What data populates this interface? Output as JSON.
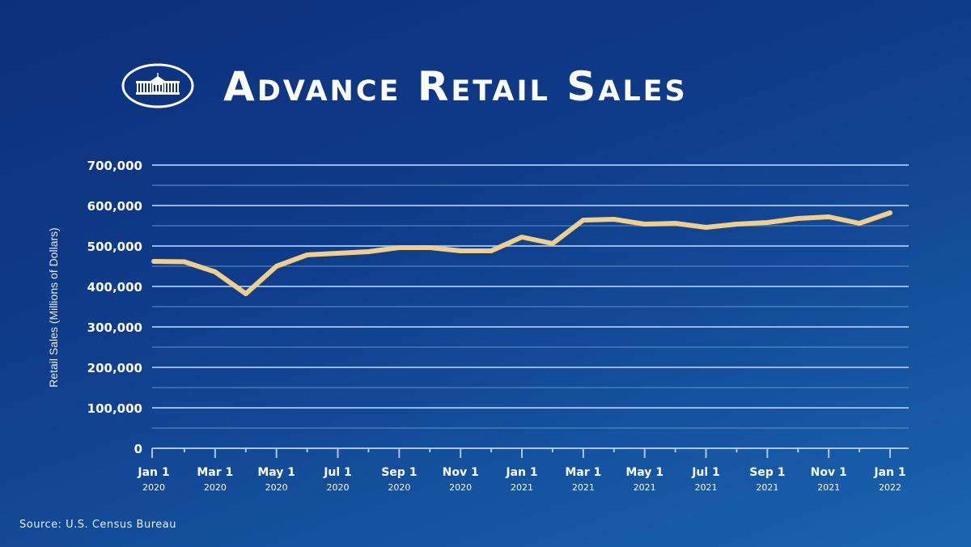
{
  "header": {
    "title": "Advance Retail Sales",
    "logo_icon": "white-house-logo-icon"
  },
  "footer": {
    "source": "Source: U.S. Census Bureau"
  },
  "colors": {
    "line": "#f1cf8a",
    "grid_major": "#9cc0ee",
    "grid_minor": "#5f8fcf",
    "axis": "#a9c8f0",
    "background_top": "#0c2f7a",
    "background_bottom": "#1a63b0"
  },
  "chart_data": {
    "type": "line",
    "title": "Advance Retail Sales",
    "xlabel": "",
    "ylabel": "Retail Sales (Millions of Dollars)",
    "ylim": [
      0,
      700000
    ],
    "yticks": [
      "0",
      "100,000",
      "200,000",
      "300,000",
      "400,000",
      "500,000",
      "600,000",
      "700,000"
    ],
    "ytick_values": [
      0,
      100000,
      200000,
      300000,
      400000,
      500000,
      600000,
      700000
    ],
    "grid": true,
    "minor_grid_step": 50000,
    "legend": "none",
    "xtick_labels": [
      {
        "month": "Jan 1",
        "year": "2020"
      },
      {
        "month": "Mar 1",
        "year": "2020"
      },
      {
        "month": "May 1",
        "year": "2020"
      },
      {
        "month": "Jul 1",
        "year": "2020"
      },
      {
        "month": "Sep 1",
        "year": "2020"
      },
      {
        "month": "Nov 1",
        "year": "2020"
      },
      {
        "month": "Jan 1",
        "year": "2021"
      },
      {
        "month": "Mar 1",
        "year": "2021"
      },
      {
        "month": "May 1",
        "year": "2021"
      },
      {
        "month": "Jul 1",
        "year": "2021"
      },
      {
        "month": "Sep 1",
        "year": "2021"
      },
      {
        "month": "Nov 1",
        "year": "2021"
      },
      {
        "month": "Jan 1",
        "year": "2022"
      }
    ],
    "x": [
      "2020-01",
      "2020-02",
      "2020-03",
      "2020-04",
      "2020-05",
      "2020-06",
      "2020-07",
      "2020-08",
      "2020-09",
      "2020-10",
      "2020-11",
      "2020-12",
      "2021-01",
      "2021-02",
      "2021-03",
      "2021-04",
      "2021-05",
      "2021-06",
      "2021-07",
      "2021-08",
      "2021-09",
      "2021-10",
      "2021-11",
      "2021-12",
      "2022-01"
    ],
    "series": [
      {
        "name": "Retail Sales",
        "values": [
          462000,
          461000,
          436000,
          382000,
          450000,
          478000,
          482000,
          486000,
          496000,
          496000,
          488000,
          488000,
          522000,
          506000,
          564000,
          566000,
          554000,
          556000,
          546000,
          554000,
          558000,
          568000,
          572000,
          556000,
          582000
        ]
      }
    ]
  }
}
